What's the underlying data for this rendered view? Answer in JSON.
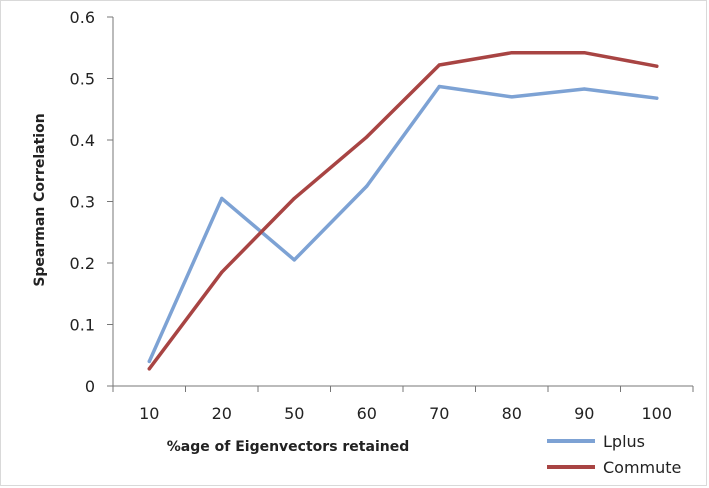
{
  "chart_data": {
    "type": "line",
    "categories": [
      "10",
      "20",
      "50",
      "60",
      "70",
      "80",
      "90",
      "100"
    ],
    "series": [
      {
        "name": "Lplus",
        "values": [
          0.04,
          0.305,
          0.205,
          0.325,
          0.487,
          0.47,
          0.483,
          0.468
        ],
        "color": "#7da2d4"
      },
      {
        "name": "Commute",
        "values": [
          0.028,
          0.185,
          0.305,
          0.405,
          0.522,
          0.542,
          0.542,
          0.52
        ],
        "color": "#a84443"
      }
    ],
    "xlabel": "%age of Eigenvectors retained",
    "ylabel": "Spearman Correlation",
    "ylim": [
      0,
      0.6
    ],
    "yticks": [
      "0",
      "0.1",
      "0.2",
      "0.3",
      "0.4",
      "0.5",
      "0.6"
    ],
    "grid": false,
    "legend_position": "bottom-right"
  }
}
